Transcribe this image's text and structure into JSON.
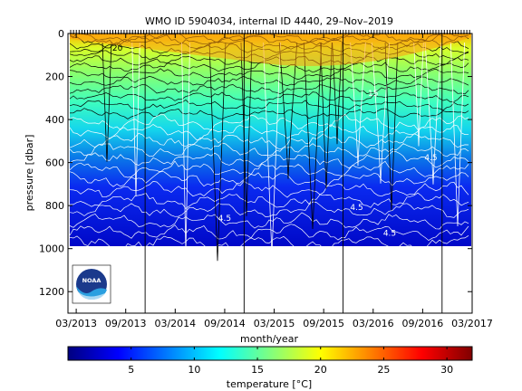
{
  "chart_data": {
    "type": "heatmap",
    "title": "WMO ID 5904034, internal ID 4440, 29–Nov–2019",
    "xlabel": "month/year",
    "ylabel": "pressure [dbar]",
    "x_ticks": [
      "03/2013",
      "09/2013",
      "03/2014",
      "09/2014",
      "03/2015",
      "09/2015",
      "03/2016",
      "09/2016",
      "03/2017"
    ],
    "x_range": [
      "02/2013",
      "03/2017"
    ],
    "y_ticks": [
      0,
      200,
      400,
      600,
      800,
      1000,
      1200
    ],
    "y_range": [
      0,
      1300
    ],
    "y_reversed": true,
    "data_max_pressure": 1000,
    "colorbar": {
      "label": "temperature [°C]",
      "ticks": [
        5,
        10,
        15,
        20,
        25,
        30
      ],
      "range": [
        0,
        32
      ],
      "colormap": "jet"
    },
    "year_boundaries": [
      "01/2014",
      "01/2015",
      "01/2016",
      "01/2017"
    ],
    "contour_labels": [
      {
        "text": "20",
        "date": "08/2013",
        "pressure": 80
      },
      {
        "text": "15",
        "date": "03/2016",
        "pressure": 290
      },
      {
        "text": "4.5",
        "date": "09/2014",
        "pressure": 870
      },
      {
        "text": "4.5",
        "date": "01/2016",
        "pressure": 820
      },
      {
        "text": "4.5",
        "date": "10/2016",
        "pressure": 590
      },
      {
        "text": "4.5",
        "date": "05/2016",
        "pressure": 940
      }
    ],
    "grid": false,
    "legend": "none"
  },
  "logo": {
    "text": "NOAA",
    "icon": "noaa-logo-icon"
  }
}
